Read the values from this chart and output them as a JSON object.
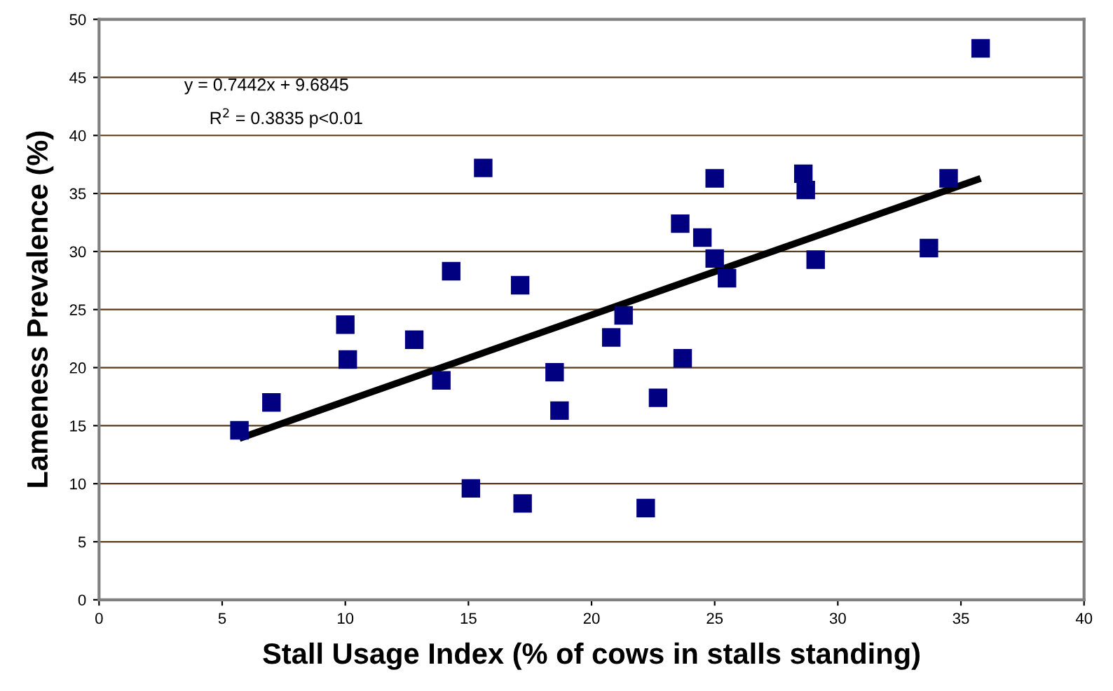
{
  "chart_data": {
    "type": "scatter",
    "xlabel": "Stall Usage Index (% of cows in stalls standing)",
    "ylabel": "Lameness Prevalence (%)",
    "xlim": [
      0,
      40
    ],
    "xticks": [
      0,
      5,
      10,
      15,
      20,
      25,
      30,
      35,
      40
    ],
    "ylim": [
      0,
      50
    ],
    "yticks": [
      0,
      5,
      10,
      15,
      20,
      25,
      30,
      35,
      40,
      45,
      50
    ],
    "grid": "y",
    "marker": "square",
    "annotations": [
      {
        "text": "y = 0.7442x + 9.6845"
      },
      {
        "text": "R$^{2}$ = 0.3835 p<0.01"
      }
    ],
    "series": [
      {
        "color": "#000080",
        "x": [
          5.7,
          7.0,
          10.0,
          10.1,
          12.8,
          13.9,
          14.3,
          15.6,
          15.1,
          17.1,
          17.2,
          18.5,
          18.7,
          20.8,
          21.3,
          22.2,
          22.7,
          23.6,
          23.7,
          24.5,
          25.0,
          25.0,
          25.5,
          28.6,
          28.7,
          29.1,
          33.7,
          34.5,
          35.8
        ],
        "values": [
          14.6,
          17.0,
          23.7,
          20.7,
          22.4,
          18.9,
          28.3,
          37.2,
          9.6,
          27.1,
          8.3,
          19.6,
          16.3,
          22.6,
          24.5,
          7.9,
          17.4,
          32.4,
          20.8,
          31.2,
          36.3,
          29.4,
          27.7,
          36.7,
          35.3,
          29.3,
          30.3,
          36.3,
          47.5
        ]
      },
      {
        "type": "line",
        "color": "#000000",
        "marker": "none",
        "x": [
          5.7,
          35.8
        ],
        "values": [
          13.9,
          36.3
        ]
      }
    ]
  }
}
